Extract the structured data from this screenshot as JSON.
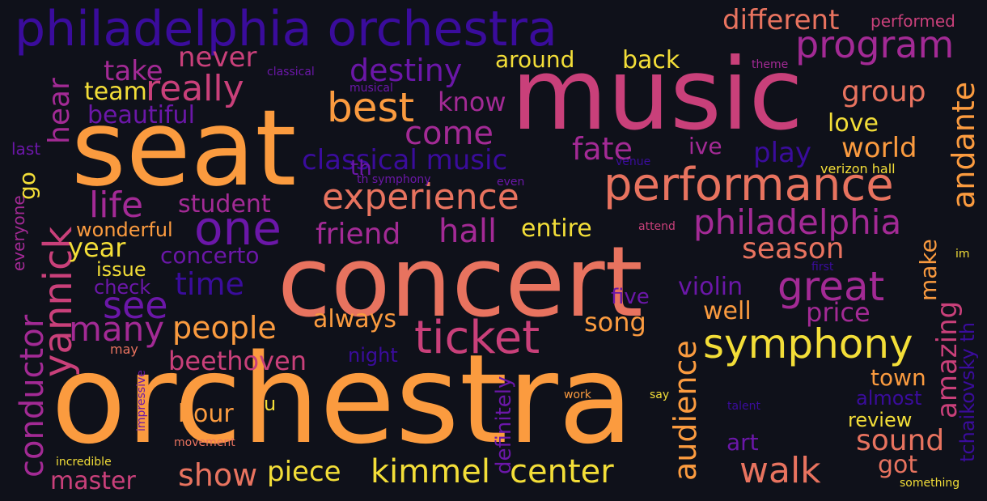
{
  "palette": {
    "background": "#0f111a",
    "orange": "#fb9b3f",
    "salmon": "#e8735f",
    "pink": "#c9407a",
    "magenta": "#a32a95",
    "purple": "#6b17a8",
    "indigo": "#3a0c9c",
    "yellow": "#f3de38"
  },
  "words": [
    {
      "id": "orchestra",
      "text": "orchestra",
      "color": "#fb9b3f"
    },
    {
      "id": "concert",
      "text": "concert",
      "color": "#e8735f"
    },
    {
      "id": "seat",
      "text": "seat",
      "color": "#fb9b3f"
    },
    {
      "id": "music",
      "text": "music",
      "color": "#c9407a"
    },
    {
      "id": "philadelphia-orchestra",
      "text": "philadelphia orchestra",
      "color": "#3a0c9c"
    },
    {
      "id": "performance",
      "text": "performance",
      "color": "#e8735f"
    },
    {
      "id": "ticket",
      "text": "ticket",
      "color": "#c9407a"
    },
    {
      "id": "symphony",
      "text": "symphony",
      "color": "#f3de38"
    },
    {
      "id": "experience",
      "text": "experience",
      "color": "#e8735f"
    },
    {
      "id": "program",
      "text": "program",
      "color": "#a32a95"
    },
    {
      "id": "one",
      "text": "one",
      "color": "#6b17a8"
    },
    {
      "id": "yannick",
      "text": "yannick",
      "color": "#c9407a"
    },
    {
      "id": "best",
      "text": "best",
      "color": "#fb9b3f"
    },
    {
      "id": "philadelphia",
      "text": "philadelphia",
      "color": "#a32a95"
    },
    {
      "id": "great",
      "text": "great",
      "color": "#a32a95"
    },
    {
      "id": "kimmel",
      "text": "kimmel",
      "color": "#f3de38"
    },
    {
      "id": "center",
      "text": "center",
      "color": "#f3de38"
    },
    {
      "id": "walk",
      "text": "walk",
      "color": "#e8735f"
    },
    {
      "id": "really",
      "text": "really",
      "color": "#c9407a"
    },
    {
      "id": "destiny",
      "text": "destiny",
      "color": "#6b17a8"
    },
    {
      "id": "come",
      "text": "come",
      "color": "#a32a95"
    },
    {
      "id": "fate",
      "text": "fate",
      "color": "#a32a95"
    },
    {
      "id": "classical-music",
      "text": "classical music",
      "color": "#3a0c9c"
    },
    {
      "id": "friend",
      "text": "friend",
      "color": "#a32a95"
    },
    {
      "id": "hall",
      "text": "hall",
      "color": "#a32a95"
    },
    {
      "id": "life",
      "text": "life",
      "color": "#a32a95"
    },
    {
      "id": "student",
      "text": "student",
      "color": "#a32a95"
    },
    {
      "id": "see",
      "text": "see",
      "color": "#6b17a8"
    },
    {
      "id": "time",
      "text": "time",
      "color": "#3a0c9c"
    },
    {
      "id": "many",
      "text": "many",
      "color": "#a32a95"
    },
    {
      "id": "people",
      "text": "people",
      "color": "#fb9b3f"
    },
    {
      "id": "audience",
      "text": "audience",
      "color": "#fb9b3f"
    },
    {
      "id": "andante",
      "text": "andante",
      "color": "#fb9b3f"
    },
    {
      "id": "conductor",
      "text": "conductor",
      "color": "#a32a95"
    },
    {
      "id": "different",
      "text": "different",
      "color": "#e8735f"
    },
    {
      "id": "never",
      "text": "never",
      "color": "#c9407a"
    },
    {
      "id": "take",
      "text": "take",
      "color": "#a32a95"
    },
    {
      "id": "hear",
      "text": "hear",
      "color": "#a32a95"
    },
    {
      "id": "team",
      "text": "team",
      "color": "#f3de38"
    },
    {
      "id": "beautiful",
      "text": "beautiful",
      "color": "#6b17a8"
    },
    {
      "id": "know",
      "text": "know",
      "color": "#a32a95"
    },
    {
      "id": "around",
      "text": "around",
      "color": "#f3de38"
    },
    {
      "id": "back",
      "text": "back",
      "color": "#f3de38"
    },
    {
      "id": "group",
      "text": "group",
      "color": "#e8735f"
    },
    {
      "id": "love",
      "text": "love",
      "color": "#f3de38"
    },
    {
      "id": "world",
      "text": "world",
      "color": "#fb9b3f"
    },
    {
      "id": "play",
      "text": "play",
      "color": "#3a0c9c"
    },
    {
      "id": "ive",
      "text": "ive",
      "color": "#a32a95"
    },
    {
      "id": "season",
      "text": "season",
      "color": "#e8735f"
    },
    {
      "id": "entire",
      "text": "entire",
      "color": "#f3de38"
    },
    {
      "id": "violin",
      "text": "violin",
      "color": "#6b17a8"
    },
    {
      "id": "well",
      "text": "well",
      "color": "#fb9b3f"
    },
    {
      "id": "price",
      "text": "price",
      "color": "#a32a95"
    },
    {
      "id": "make",
      "text": "make",
      "color": "#fb9b3f"
    },
    {
      "id": "amazing",
      "text": "amazing",
      "color": "#c9407a"
    },
    {
      "id": "tchaikovsky",
      "text": "tchaikovsky th",
      "color": "#3a0c9c"
    },
    {
      "id": "beethoven",
      "text": "beethoven",
      "color": "#c9407a"
    },
    {
      "id": "always",
      "text": "always",
      "color": "#fb9b3f"
    },
    {
      "id": "song",
      "text": "song",
      "color": "#fb9b3f"
    },
    {
      "id": "hour",
      "text": "hour",
      "color": "#fb9b3f"
    },
    {
      "id": "show",
      "text": "show",
      "color": "#e8735f"
    },
    {
      "id": "piece",
      "text": "piece",
      "color": "#f3de38"
    },
    {
      "id": "master",
      "text": "master",
      "color": "#c9407a"
    },
    {
      "id": "sound",
      "text": "sound",
      "color": "#e8735f"
    },
    {
      "id": "got",
      "text": "got",
      "color": "#e8735f"
    },
    {
      "id": "art",
      "text": "art",
      "color": "#6b17a8"
    },
    {
      "id": "town",
      "text": "town",
      "color": "#fb9b3f"
    },
    {
      "id": "review",
      "text": "review",
      "color": "#f3de38"
    },
    {
      "id": "almost",
      "text": "almost",
      "color": "#3a0c9c"
    },
    {
      "id": "year",
      "text": "year",
      "color": "#f3de38"
    },
    {
      "id": "wonderful",
      "text": "wonderful",
      "color": "#fb9b3f"
    },
    {
      "id": "issue",
      "text": "issue",
      "color": "#f3de38"
    },
    {
      "id": "check",
      "text": "check",
      "color": "#6b17a8"
    },
    {
      "id": "concerto",
      "text": "concerto",
      "color": "#6b17a8"
    },
    {
      "id": "go",
      "text": "go",
      "color": "#f3de38"
    },
    {
      "id": "th",
      "text": "th",
      "color": "#6b17a8"
    },
    {
      "id": "five",
      "text": "five",
      "color": "#6b17a8"
    },
    {
      "id": "night",
      "text": "night",
      "color": "#3a0c9c"
    },
    {
      "id": "definitely",
      "text": "definitely",
      "color": "#6b17a8"
    },
    {
      "id": "u",
      "text": "u",
      "color": "#f3de38"
    },
    {
      "id": "everyone",
      "text": "everyone",
      "color": "#a32a95"
    },
    {
      "id": "last",
      "text": "last",
      "color": "#6b17a8"
    },
    {
      "id": "may",
      "text": "may",
      "color": "#e8735f"
    },
    {
      "id": "performed",
      "text": "performed",
      "color": "#c9407a"
    },
    {
      "id": "theme",
      "text": "theme",
      "color": "#a32a95"
    },
    {
      "id": "classical",
      "text": "classical",
      "color": "#6b17a8"
    },
    {
      "id": "musical",
      "text": "musical",
      "color": "#6b17a8"
    },
    {
      "id": "th-symphony",
      "text": "th symphony",
      "color": "#6b17a8"
    },
    {
      "id": "even",
      "text": "even",
      "color": "#6b17a8"
    },
    {
      "id": "venue",
      "text": "venue",
      "color": "#3a0c9c"
    },
    {
      "id": "verizon-hall",
      "text": "verizon hall",
      "color": "#f3de38"
    },
    {
      "id": "attend",
      "text": "attend",
      "color": "#c9407a"
    },
    {
      "id": "first",
      "text": "first",
      "color": "#3a0c9c"
    },
    {
      "id": "im",
      "text": "im",
      "color": "#f3de38"
    },
    {
      "id": "work",
      "text": "work",
      "color": "#fb9b3f"
    },
    {
      "id": "say",
      "text": "say",
      "color": "#f3de38"
    },
    {
      "id": "talent",
      "text": "talent",
      "color": "#3a0c9c"
    },
    {
      "id": "impressive",
      "text": "impressive",
      "color": "#6b17a8"
    },
    {
      "id": "movement",
      "text": "movement",
      "color": "#e8735f"
    },
    {
      "id": "incredible",
      "text": "incredible",
      "color": "#f3de38"
    },
    {
      "id": "something",
      "text": "something",
      "color": "#f3de38"
    }
  ]
}
